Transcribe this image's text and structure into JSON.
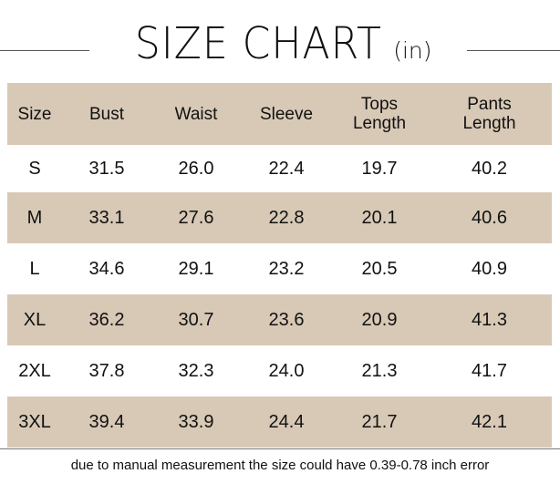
{
  "title": {
    "main": "SIZE CHART",
    "unit": "(in)"
  },
  "table": {
    "headers": [
      {
        "lines": [
          "Size"
        ]
      },
      {
        "lines": [
          "Bust"
        ]
      },
      {
        "lines": [
          "Waist"
        ]
      },
      {
        "lines": [
          "Sleeve"
        ]
      },
      {
        "lines": [
          "Tops",
          "Length"
        ]
      },
      {
        "lines": [
          "Pants",
          "Length"
        ]
      }
    ],
    "rows": [
      [
        "S",
        "31.5",
        "26.0",
        "22.4",
        "19.7",
        "40.2"
      ],
      [
        "M",
        "33.1",
        "27.6",
        "22.8",
        "20.1",
        "40.6"
      ],
      [
        "L",
        "34.6",
        "29.1",
        "23.2",
        "20.5",
        "40.9"
      ],
      [
        "XL",
        "36.2",
        "30.7",
        "23.6",
        "20.9",
        "41.3"
      ],
      [
        "2XL",
        "37.8",
        "32.3",
        "24.0",
        "21.3",
        "41.7"
      ],
      [
        "3XL",
        "39.4",
        "33.9",
        "24.4",
        "21.7",
        "42.1"
      ]
    ],
    "shade_color": "#d8c9b6"
  },
  "footnote": "due to manual measurement the size could have 0.39-0.78 inch error"
}
